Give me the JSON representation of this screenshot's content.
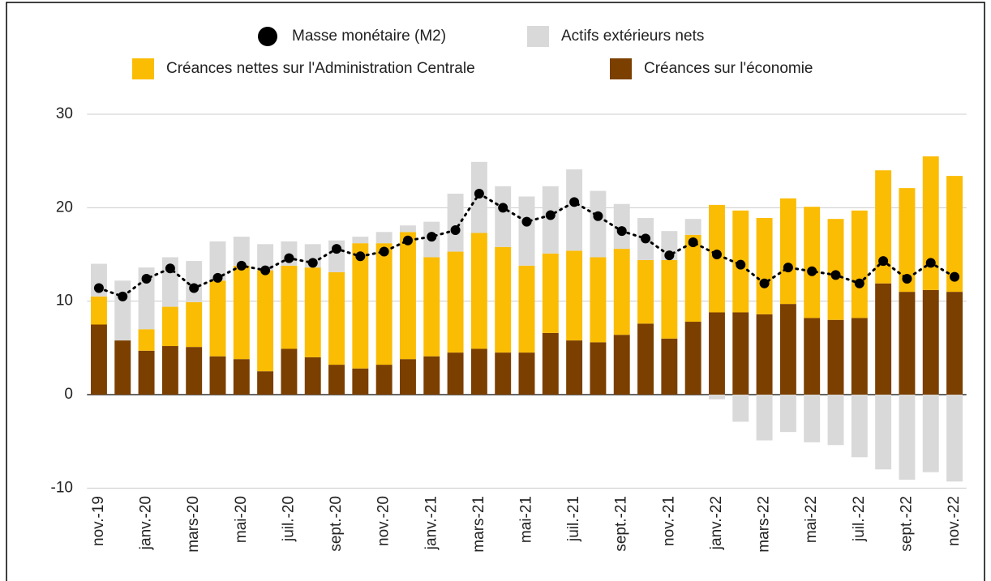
{
  "chart_data": {
    "type": "bar",
    "stacked": true,
    "categories": [
      "nov.-19",
      null,
      "janv.-20",
      null,
      "mars-20",
      null,
      "mai-20",
      null,
      "juil.-20",
      null,
      "sept.-20",
      null,
      "nov.-20",
      null,
      "janv.-21",
      null,
      "mars-21",
      null,
      "mai-21",
      null,
      "juil.-21",
      null,
      "sept.-21",
      null,
      "nov.-21",
      null,
      "janv.-22",
      null,
      "mars-22",
      null,
      "mai-22",
      null,
      "juil.-22",
      null,
      "sept.-22",
      null,
      "nov.-22"
    ],
    "series": [
      {
        "name": "Masse monétaire (M2)",
        "type": "line",
        "color": "#000000",
        "values": [
          11.4,
          10.5,
          12.4,
          13.5,
          11.4,
          12.5,
          13.8,
          13.3,
          14.6,
          14.1,
          15.6,
          14.8,
          15.3,
          16.5,
          16.9,
          17.6,
          21.5,
          20.0,
          18.5,
          19.2,
          20.6,
          19.1,
          17.5,
          16.7,
          14.9,
          16.3,
          15.0,
          13.9,
          11.9,
          13.6,
          13.2,
          12.8,
          11.9,
          14.3,
          12.4,
          14.1,
          12.6
        ]
      },
      {
        "name": "Actifs extérieurs nets",
        "type": "bar",
        "color": "#d9d9d9",
        "values": [
          3.5,
          6.4,
          6.6,
          5.3,
          4.4,
          4.2,
          3.1,
          2.8,
          2.6,
          2.5,
          3.4,
          0.7,
          1.2,
          0.7,
          3.8,
          6.2,
          7.6,
          6.5,
          7.4,
          7.2,
          8.7,
          7.1,
          4.8,
          4.5,
          3.1,
          1.7,
          -0.5,
          -2.9,
          -4.9,
          -4.0,
          -5.1,
          -5.4,
          -6.7,
          -8.0,
          -9.1,
          -8.3,
          -9.3
        ]
      },
      {
        "name": "Créances nettes sur l'Administration Centrale",
        "type": "bar",
        "color": "#fbbc04",
        "values": [
          3.0,
          0,
          2.3,
          4.2,
          4.8,
          8.1,
          10.0,
          10.8,
          8.9,
          9.6,
          9.9,
          13.4,
          13.0,
          13.6,
          10.6,
          10.8,
          12.4,
          11.3,
          9.3,
          8.5,
          9.6,
          9.1,
          9.2,
          6.8,
          8.4,
          9.3,
          11.5,
          10.9,
          10.3,
          11.3,
          11.9,
          10.8,
          11.5,
          12.1,
          11.1,
          14.3,
          12.4
        ]
      },
      {
        "name": "Créances sur l'économie",
        "type": "bar",
        "color": "#7b3f00",
        "values": [
          7.5,
          5.8,
          4.7,
          5.2,
          5.1,
          4.1,
          3.8,
          2.5,
          4.9,
          4.0,
          3.2,
          2.8,
          3.2,
          3.8,
          4.1,
          4.5,
          4.9,
          4.5,
          4.5,
          6.6,
          5.8,
          5.6,
          6.4,
          7.6,
          6.0,
          7.8,
          8.8,
          8.8,
          8.6,
          9.7,
          8.2,
          8.0,
          8.2,
          11.9,
          11.0,
          11.2,
          11.0
        ]
      }
    ],
    "ylim": [
      -11,
      31
    ],
    "yticks": [
      -10,
      0,
      10,
      20,
      30
    ],
    "grid": true,
    "legend": "top"
  }
}
